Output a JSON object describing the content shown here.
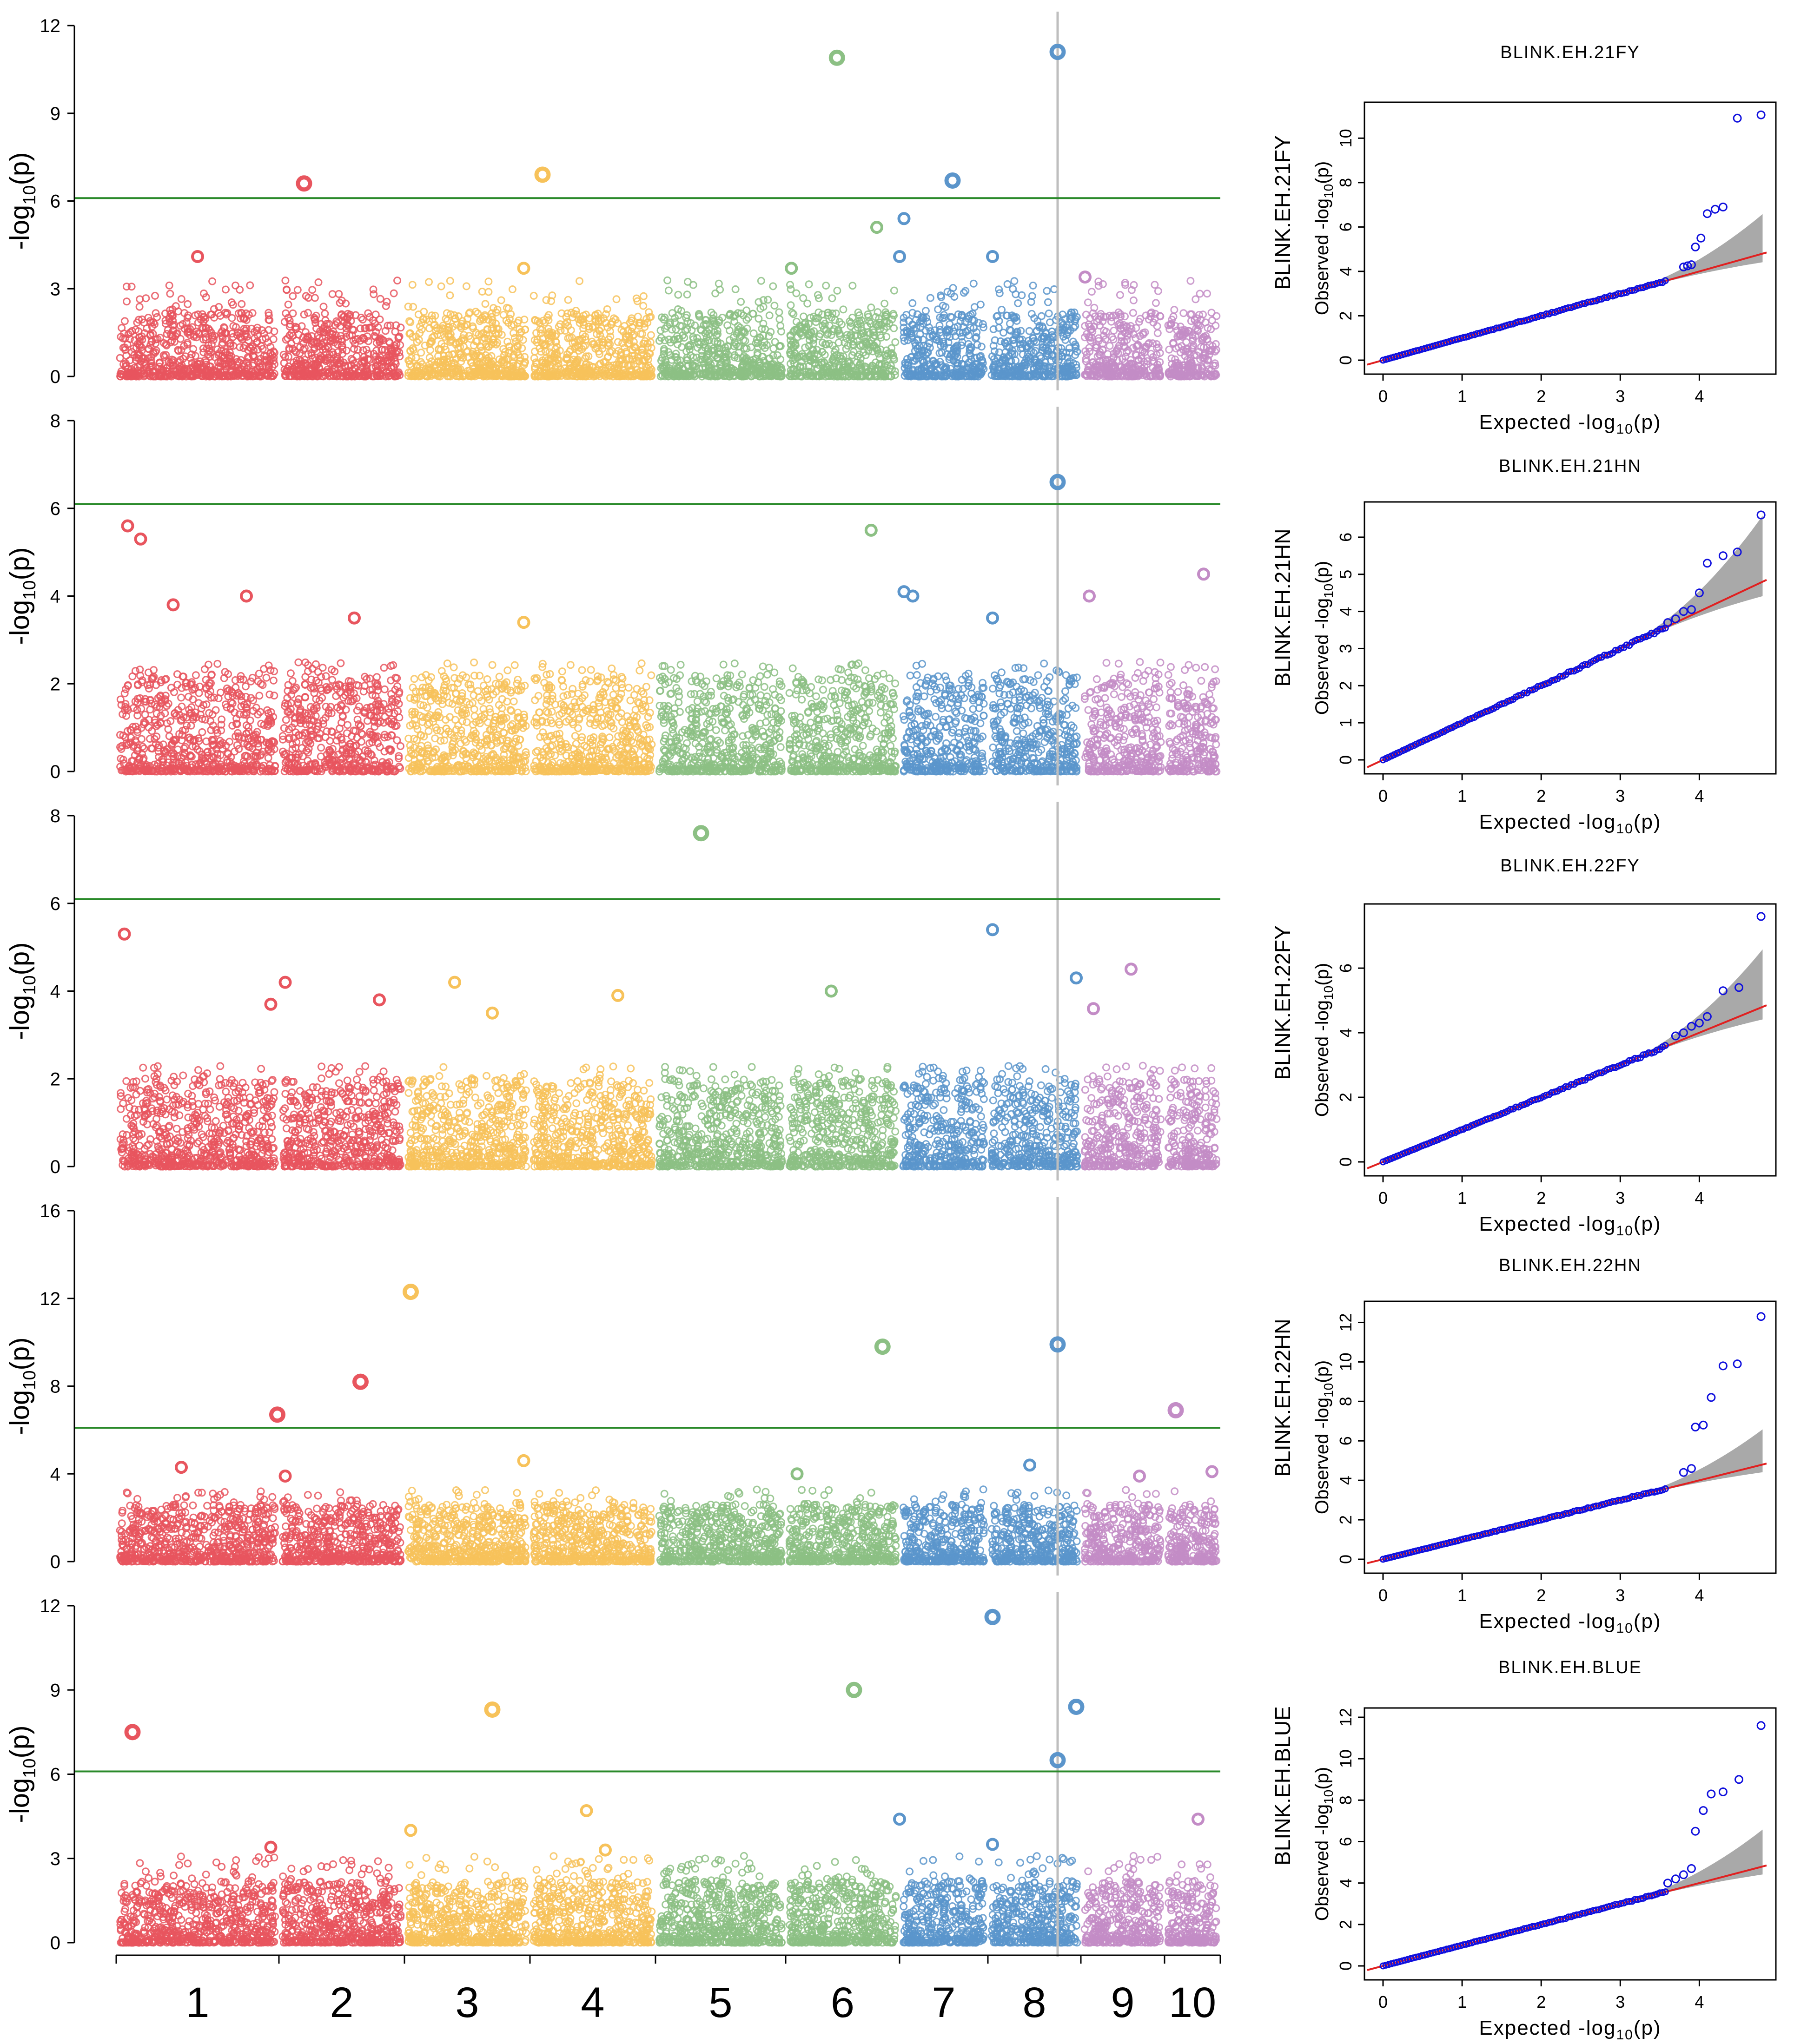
{
  "colors": {
    "chr": [
      "#E8555E",
      "#E8555E",
      "#F7C25A",
      "#F7C25A",
      "#8CC084",
      "#8CC084",
      "#5B95CB",
      "#5B95CB",
      "#C38CC6",
      "#C38CC6"
    ],
    "palette": [
      "#E8555E",
      "#F7C25A",
      "#8CC084",
      "#5B95CB",
      "#C38CC6"
    ],
    "threshold": "#2A8A2A",
    "marker_line": "#BEBEBE",
    "qq_points": "#1010DD",
    "qq_line": "#E02020",
    "qq_band": "#9A9A9A"
  },
  "chart_data": [
    {
      "type": "scatter",
      "name": "manhattan-21FY",
      "title": "BLINK.EH.21FY",
      "xlabel": "",
      "ylabel": "-log10(p)",
      "ylim": [
        0,
        12
      ],
      "yticks": [
        0,
        3,
        6,
        9,
        12
      ],
      "threshold": 6.1,
      "marker_chr": 8,
      "marker_pos": 0.75,
      "noise": {
        "base": 2.2,
        "scale": 2.2
      },
      "peaks": [
        {
          "chr": 6,
          "pos": 0.45,
          "y": 10.9
        },
        {
          "chr": 8,
          "pos": 0.75,
          "y": 11.1
        },
        {
          "chr": 2,
          "pos": 0.2,
          "y": 6.6
        },
        {
          "chr": 4,
          "pos": 0.1,
          "y": 6.9
        },
        {
          "chr": 7,
          "pos": 0.6,
          "y": 6.7
        },
        {
          "chr": 6,
          "pos": 0.8,
          "y": 5.1
        },
        {
          "chr": 7,
          "pos": 0.05,
          "y": 5.4
        },
        {
          "chr": 7,
          "pos": 0.0,
          "y": 4.1
        },
        {
          "chr": 1,
          "pos": 0.5,
          "y": 4.1
        },
        {
          "chr": 8,
          "pos": 0.05,
          "y": 4.1
        },
        {
          "chr": 6,
          "pos": 0.05,
          "y": 3.7
        },
        {
          "chr": 3,
          "pos": 0.95,
          "y": 3.7
        },
        {
          "chr": 9,
          "pos": 0.05,
          "y": 3.4
        }
      ]
    },
    {
      "type": "scatter",
      "name": "manhattan-21HN",
      "title": "BLINK.EH.21HN",
      "xlabel": "",
      "ylabel": "-log10(p)",
      "ylim": [
        0,
        8
      ],
      "yticks": [
        0,
        2,
        4,
        6,
        8
      ],
      "threshold": 6.1,
      "marker_chr": 8,
      "marker_pos": 0.75,
      "noise": {
        "base": 2.2,
        "scale": 1.4
      },
      "peaks": [
        {
          "chr": 8,
          "pos": 0.75,
          "y": 6.6
        },
        {
          "chr": 1,
          "pos": 0.07,
          "y": 5.6
        },
        {
          "chr": 1,
          "pos": 0.15,
          "y": 5.3
        },
        {
          "chr": 6,
          "pos": 0.75,
          "y": 5.5
        },
        {
          "chr": 10,
          "pos": 0.7,
          "y": 4.5
        },
        {
          "chr": 7,
          "pos": 0.05,
          "y": 4.1
        },
        {
          "chr": 7,
          "pos": 0.15,
          "y": 4.0
        },
        {
          "chr": 9,
          "pos": 0.1,
          "y": 4.0
        },
        {
          "chr": 1,
          "pos": 0.8,
          "y": 4.0
        },
        {
          "chr": 1,
          "pos": 0.35,
          "y": 3.8
        },
        {
          "chr": 8,
          "pos": 0.05,
          "y": 3.5
        },
        {
          "chr": 3,
          "pos": 0.95,
          "y": 3.4
        },
        {
          "chr": 2,
          "pos": 0.6,
          "y": 3.5
        }
      ]
    },
    {
      "type": "scatter",
      "name": "manhattan-22FY",
      "title": "BLINK.EH.22FY",
      "xlabel": "",
      "ylabel": "-log10(p)",
      "ylim": [
        0,
        8
      ],
      "yticks": [
        0,
        2,
        4,
        6,
        8
      ],
      "threshold": 6.1,
      "marker_chr": 8,
      "marker_pos": 0.75,
      "noise": {
        "base": 2.0,
        "scale": 1.3
      },
      "peaks": [
        {
          "chr": 5,
          "pos": 0.35,
          "y": 7.6
        },
        {
          "chr": 8,
          "pos": 0.05,
          "y": 5.4
        },
        {
          "chr": 1,
          "pos": 0.05,
          "y": 5.3
        },
        {
          "chr": 9,
          "pos": 0.6,
          "y": 4.5
        },
        {
          "chr": 2,
          "pos": 0.05,
          "y": 4.2
        },
        {
          "chr": 8,
          "pos": 0.95,
          "y": 4.3
        },
        {
          "chr": 3,
          "pos": 0.4,
          "y": 4.2
        },
        {
          "chr": 6,
          "pos": 0.4,
          "y": 4.0
        },
        {
          "chr": 4,
          "pos": 0.7,
          "y": 3.9
        },
        {
          "chr": 2,
          "pos": 0.8,
          "y": 3.8
        },
        {
          "chr": 1,
          "pos": 0.95,
          "y": 3.7
        },
        {
          "chr": 9,
          "pos": 0.15,
          "y": 3.6
        },
        {
          "chr": 3,
          "pos": 0.7,
          "y": 3.5
        }
      ]
    },
    {
      "type": "scatter",
      "name": "manhattan-22HN",
      "title": "BLINK.EH.22HN",
      "xlabel": "",
      "ylabel": "-log10(p)",
      "ylim": [
        0,
        16
      ],
      "yticks": [
        0,
        4,
        8,
        12,
        16
      ],
      "threshold": 6.1,
      "marker_chr": 8,
      "marker_pos": 0.75,
      "noise": {
        "base": 2.6,
        "scale": 2.0
      },
      "peaks": [
        {
          "chr": 3,
          "pos": 0.05,
          "y": 12.3
        },
        {
          "chr": 6,
          "pos": 0.85,
          "y": 9.8
        },
        {
          "chr": 8,
          "pos": 0.75,
          "y": 9.9
        },
        {
          "chr": 2,
          "pos": 0.65,
          "y": 8.2
        },
        {
          "chr": 10,
          "pos": 0.2,
          "y": 6.9
        },
        {
          "chr": 1,
          "pos": 0.99,
          "y": 6.7
        },
        {
          "chr": 3,
          "pos": 0.95,
          "y": 4.6
        },
        {
          "chr": 8,
          "pos": 0.45,
          "y": 4.4
        },
        {
          "chr": 1,
          "pos": 0.4,
          "y": 4.3
        },
        {
          "chr": 10,
          "pos": 0.85,
          "y": 4.1
        },
        {
          "chr": 6,
          "pos": 0.1,
          "y": 4.0
        },
        {
          "chr": 9,
          "pos": 0.7,
          "y": 3.9
        },
        {
          "chr": 2,
          "pos": 0.05,
          "y": 3.9
        }
      ]
    },
    {
      "type": "scatter",
      "name": "manhattan-BLUE",
      "title": "BLINK.EH.BLUE",
      "xlabel": "",
      "ylabel": "-log10(p)",
      "ylim": [
        0,
        12
      ],
      "yticks": [
        0,
        3,
        6,
        9,
        12
      ],
      "threshold": 6.1,
      "marker_chr": 8,
      "marker_pos": 0.75,
      "noise": {
        "base": 2.2,
        "scale": 2.0
      },
      "peaks": [
        {
          "chr": 8,
          "pos": 0.05,
          "y": 11.6
        },
        {
          "chr": 6,
          "pos": 0.6,
          "y": 9.0
        },
        {
          "chr": 3,
          "pos": 0.7,
          "y": 8.3
        },
        {
          "chr": 8,
          "pos": 0.95,
          "y": 8.4
        },
        {
          "chr": 1,
          "pos": 0.1,
          "y": 7.5
        },
        {
          "chr": 8,
          "pos": 0.75,
          "y": 6.5
        },
        {
          "chr": 4,
          "pos": 0.45,
          "y": 4.7
        },
        {
          "chr": 10,
          "pos": 0.6,
          "y": 4.4
        },
        {
          "chr": 7,
          "pos": 0.0,
          "y": 4.4
        },
        {
          "chr": 3,
          "pos": 0.05,
          "y": 4.0
        },
        {
          "chr": 8,
          "pos": 0.05,
          "y": 3.5
        },
        {
          "chr": 1,
          "pos": 0.95,
          "y": 3.4
        },
        {
          "chr": 4,
          "pos": 0.6,
          "y": 3.3
        }
      ]
    },
    {
      "type": "scatter",
      "name": "qq-21FY",
      "title": "BLINK.EH.21FY",
      "xlabel": "Expected -log10(p)",
      "ylabel": "Observed -log10(p)",
      "xlim": [
        0,
        4.85
      ],
      "xticks": [
        0,
        1,
        2,
        3,
        4
      ],
      "ylim": [
        0,
        11.2
      ],
      "yticks": [
        0,
        2,
        4,
        6,
        8,
        10
      ],
      "upper_tail": [
        [
          3.8,
          4.2
        ],
        [
          3.85,
          4.25
        ],
        [
          3.9,
          4.3
        ],
        [
          3.95,
          5.1
        ],
        [
          4.02,
          5.5
        ],
        [
          4.1,
          6.6
        ],
        [
          4.2,
          6.8
        ],
        [
          4.3,
          6.9
        ],
        [
          4.48,
          10.9
        ],
        [
          4.78,
          11.05
        ]
      ]
    },
    {
      "type": "scatter",
      "name": "qq-21HN",
      "title": "BLINK.EH.21HN",
      "xlabel": "Expected -log10(p)",
      "ylabel": "Observed -log10(p)",
      "xlim": [
        0,
        4.85
      ],
      "xticks": [
        0,
        1,
        2,
        3,
        4
      ],
      "ylim": [
        0,
        6.7
      ],
      "yticks": [
        0,
        1,
        2,
        3,
        4,
        5,
        6
      ],
      "upper_tail": [
        [
          3.6,
          3.7
        ],
        [
          3.7,
          3.8
        ],
        [
          3.8,
          4.0
        ],
        [
          3.9,
          4.05
        ],
        [
          4.0,
          4.5
        ],
        [
          4.1,
          5.3
        ],
        [
          4.3,
          5.5
        ],
        [
          4.48,
          5.6
        ],
        [
          4.78,
          6.6
        ]
      ]
    },
    {
      "type": "scatter",
      "name": "qq-22FY",
      "title": "BLINK.EH.22FY",
      "xlabel": "Expected -log10(p)",
      "ylabel": "Observed -log10(p)",
      "xlim": [
        0,
        4.85
      ],
      "xticks": [
        0,
        1,
        2,
        3,
        4
      ],
      "ylim": [
        0,
        7.7
      ],
      "yticks": [
        0,
        2,
        4,
        6
      ],
      "upper_tail": [
        [
          3.7,
          3.9
        ],
        [
          3.8,
          4.0
        ],
        [
          3.9,
          4.2
        ],
        [
          4.0,
          4.3
        ],
        [
          4.1,
          4.5
        ],
        [
          4.3,
          5.3
        ],
        [
          4.5,
          5.4
        ],
        [
          4.78,
          7.6
        ]
      ]
    },
    {
      "type": "scatter",
      "name": "qq-22HN",
      "title": "BLINK.EH.22HN",
      "xlabel": "Expected -log10(p)",
      "ylabel": "Observed -log10(p)",
      "xlim": [
        0,
        4.85
      ],
      "xticks": [
        0,
        1,
        2,
        3,
        4
      ],
      "ylim": [
        0,
        12.6
      ],
      "yticks": [
        0,
        2,
        4,
        6,
        8,
        10,
        12
      ],
      "upper_tail": [
        [
          3.8,
          4.4
        ],
        [
          3.9,
          4.6
        ],
        [
          3.95,
          6.7
        ],
        [
          4.05,
          6.8
        ],
        [
          4.15,
          8.2
        ],
        [
          4.3,
          9.8
        ],
        [
          4.48,
          9.9
        ],
        [
          4.78,
          12.3
        ]
      ]
    },
    {
      "type": "scatter",
      "name": "qq-BLUE",
      "title": "BLINK.EH.BLUE",
      "xlabel": "Expected -log10(p)",
      "ylabel": "Observed -log10(p)",
      "xlim": [
        0,
        4.85
      ],
      "xticks": [
        0,
        1,
        2,
        3,
        4
      ],
      "ylim": [
        0,
        12
      ],
      "yticks": [
        0,
        2,
        4,
        6,
        8,
        10,
        12
      ],
      "upper_tail": [
        [
          3.6,
          4.0
        ],
        [
          3.7,
          4.2
        ],
        [
          3.8,
          4.4
        ],
        [
          3.9,
          4.7
        ],
        [
          3.95,
          6.5
        ],
        [
          4.05,
          7.5
        ],
        [
          4.15,
          8.3
        ],
        [
          4.3,
          8.4
        ],
        [
          4.5,
          9.0
        ],
        [
          4.78,
          11.6
        ]
      ]
    }
  ],
  "chromosomes": {
    "labels": [
      "1",
      "2",
      "3",
      "4",
      "5",
      "6",
      "7",
      "8",
      "9",
      "10"
    ]
  },
  "labels": {
    "ylabel_main": "-log",
    "ylabel_sub": "10",
    "ylabel_end": "(p)",
    "qq_observed": "Observed -log",
    "qq_expected": "Expected -log",
    "qq_sub": "10",
    "qq_end": "(p)"
  }
}
